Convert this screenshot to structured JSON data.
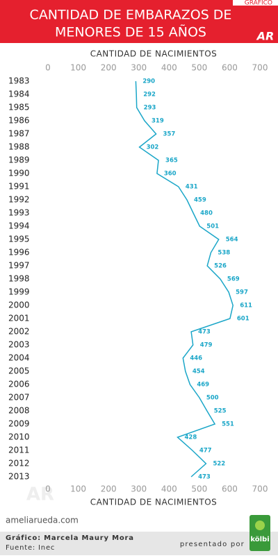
{
  "header": {
    "tag": "GRÁFICO",
    "logo": "AR"
  },
  "chart_data": {
    "type": "line",
    "title": [
      "CANTIDAD DE EMBARAZOS DE",
      "MENORES DE 15 AÑOS"
    ],
    "x_label": "CANTIDAD DE NACIMIENTOS",
    "categories": [
      "1983",
      "1984",
      "1985",
      "1986",
      "1987",
      "1988",
      "1989",
      "1990",
      "1991",
      "1992",
      "1993",
      "1994",
      "1995",
      "1996",
      "1997",
      "1998",
      "1999",
      "2000",
      "2001",
      "2002",
      "2003",
      "2004",
      "2005",
      "2006",
      "2007",
      "2008",
      "2009",
      "2010",
      "2011",
      "2012",
      "2013"
    ],
    "values": [
      290,
      292,
      293,
      319,
      357,
      302,
      365,
      360,
      431,
      459,
      480,
      501,
      564,
      538,
      526,
      569,
      597,
      611,
      601,
      473,
      479,
      446,
      454,
      469,
      500,
      525,
      551,
      428,
      477,
      522,
      473
    ],
    "color": "#1aa6c8",
    "xlim": [
      0,
      700
    ],
    "xticks": [
      0,
      100,
      200,
      300,
      400,
      500,
      600,
      700
    ]
  },
  "footer": {
    "watermark": "AR",
    "site": "ameliarueda.com",
    "credit": "Gráfico: Marcela Maury Mora",
    "source": "Fuente: Inec",
    "sponsor": "presentado por",
    "sponsor_logo": "kölbi"
  }
}
